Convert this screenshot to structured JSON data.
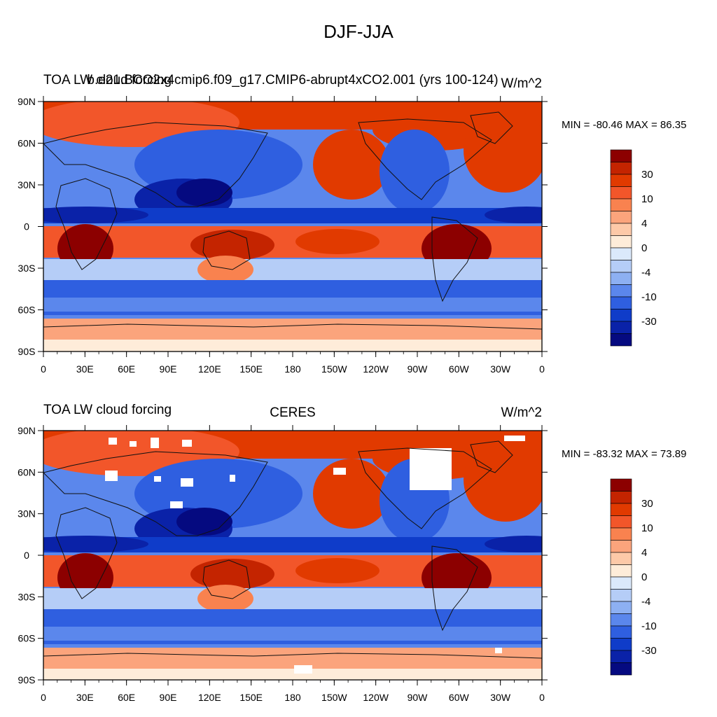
{
  "title": "DJF-JJA",
  "colors": {
    "palette": [
      "#8c0000",
      "#c42400",
      "#e13a00",
      "#f2562a",
      "#f9824f",
      "#fba47c",
      "#fdc9a8",
      "#feecd9",
      "#dbe9fb",
      "#b5cdf7",
      "#8db0f2",
      "#5b87ec",
      "#2f5fe0",
      "#0f3cc9",
      "#0a22a8",
      "#050a80"
    ],
    "ocean_blue": "#1e48cc",
    "coast": "#111111"
  },
  "panels": [
    {
      "left_title": "TOA LW cloud forcing",
      "center_title": "b.e21.BCO2x4cmip6.f09_g17.CMIP6-abrupt4xCO2.001 (yrs 100-124)",
      "units": "W/m^2",
      "min_max": "MIN = -80.46 MAX =  86.35",
      "lat_ticks": [
        "90N",
        "60N",
        "30N",
        "0",
        "30S",
        "60S",
        "90S"
      ],
      "lon_ticks": [
        "0",
        "30E",
        "60E",
        "90E",
        "120E",
        "150E",
        "180",
        "150W",
        "120W",
        "90W",
        "60W",
        "30W",
        "0"
      ],
      "colorbar_labels": [
        "30",
        "10",
        "4",
        "0",
        "-4",
        "-10",
        "-30"
      ]
    },
    {
      "left_title": "TOA LW cloud forcing",
      "center_title": "CERES",
      "units": "W/m^2",
      "min_max": "MIN = -83.32 MAX =  73.89",
      "lat_ticks": [
        "90N",
        "60N",
        "30N",
        "0",
        "30S",
        "60S",
        "90S"
      ],
      "lon_ticks": [
        "0",
        "30E",
        "60E",
        "90E",
        "120E",
        "150E",
        "180",
        "150W",
        "120W",
        "90W",
        "60W",
        "30W",
        "0"
      ],
      "colorbar_labels": [
        "30",
        "10",
        "4",
        "0",
        "-4",
        "-10",
        "-30"
      ]
    }
  ]
}
